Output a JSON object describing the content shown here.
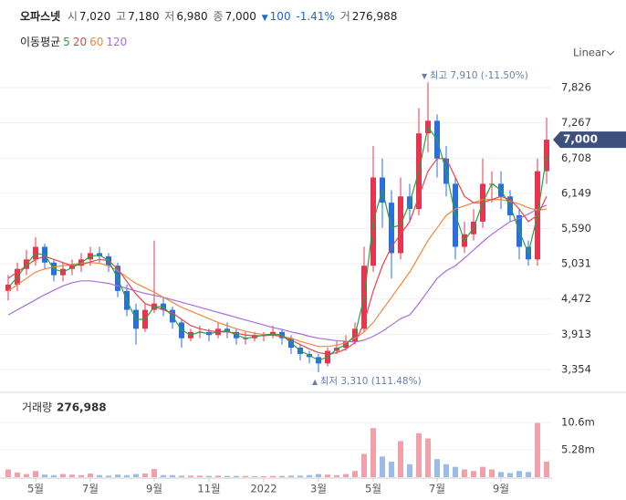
{
  "header": {
    "name": "오파스넷",
    "fields": [
      {
        "label": "시",
        "value": "7,020"
      },
      {
        "label": "고",
        "value": "7,180"
      },
      {
        "label": "저",
        "value": "6,980"
      },
      {
        "label": "종",
        "value": "7,000"
      }
    ],
    "change": "100",
    "change_pct": "-1.41%",
    "volume_label": "거",
    "volume_value": "276,988"
  },
  "chart_data": [
    {
      "type": "candlestick",
      "scale_mode": "Linear",
      "legend_title": "이동평균",
      "up_color": "#e8344e",
      "down_color": "#2a6fdb",
      "ylim": [
        3200,
        8000
      ],
      "yticks": [
        {
          "value": 3354,
          "label": "3,354"
        },
        {
          "value": 3913,
          "label": "3,913"
        },
        {
          "value": 4472,
          "label": "4,472"
        },
        {
          "value": 5031,
          "label": "5,031"
        },
        {
          "value": 5590,
          "label": "5,590"
        },
        {
          "value": 6149,
          "label": "6,149"
        },
        {
          "value": 6708,
          "label": "6,708"
        },
        {
          "value": 7267,
          "label": "7,267"
        },
        {
          "value": 7826,
          "label": "7,826"
        }
      ],
      "grid": true,
      "open": [
        4600,
        4700,
        4950,
        5100,
        5300,
        5050,
        4850,
        4950,
        5000,
        5100,
        5200,
        5150,
        5000,
        4600,
        4300,
        4000,
        4300,
        4400,
        4300,
        4100,
        3850,
        3950,
        3950,
        3900,
        4000,
        3950,
        3850,
        3850,
        3900,
        3900,
        3950,
        3850,
        3700,
        3600,
        3550,
        3450,
        3650,
        3700,
        3800,
        4000,
        5000,
        6400,
        6000,
        5200,
        6100,
        5900,
        7100,
        7300,
        6700,
        6300,
        5300,
        5500,
        5700,
        6300,
        6300,
        6100,
        5800,
        5300,
        5100,
        6500
      ],
      "high": [
        4850,
        5050,
        5250,
        5450,
        5350,
        5100,
        5050,
        5100,
        5200,
        5300,
        5300,
        5200,
        5050,
        4700,
        4400,
        4400,
        5400,
        4500,
        4350,
        4150,
        4000,
        4050,
        4000,
        4100,
        4100,
        4000,
        3950,
        3950,
        3950,
        4050,
        4000,
        3900,
        3750,
        3650,
        3600,
        3700,
        3800,
        3900,
        4100,
        5300,
        6900,
        6700,
        6200,
        6400,
        6300,
        7500,
        7910,
        7400,
        6900,
        6400,
        5700,
        5900,
        6700,
        6500,
        6500,
        6200,
        5900,
        5400,
        6700,
        7350
      ],
      "low": [
        4450,
        4600,
        4850,
        5000,
        4950,
        4750,
        4750,
        4850,
        4900,
        5000,
        5050,
        4900,
        4500,
        4200,
        3750,
        3950,
        4250,
        4200,
        4000,
        3700,
        3800,
        3850,
        3800,
        3850,
        3850,
        3750,
        3750,
        3800,
        3800,
        3850,
        3750,
        3600,
        3500,
        3450,
        3310,
        3400,
        3600,
        3650,
        3750,
        3950,
        4900,
        5600,
        4800,
        5100,
        5700,
        5800,
        6800,
        6400,
        6100,
        5100,
        5200,
        5400,
        5600,
        6000,
        5900,
        5700,
        5100,
        5000,
        5000,
        6300
      ],
      "close": [
        4700,
        4950,
        5100,
        5300,
        5050,
        4850,
        4950,
        5000,
        5100,
        5200,
        5150,
        5000,
        4600,
        4300,
        4000,
        4300,
        4400,
        4300,
        4100,
        3850,
        3950,
        3950,
        3900,
        4000,
        3950,
        3850,
        3850,
        3900,
        3900,
        3950,
        3850,
        3700,
        3600,
        3550,
        3450,
        3650,
        3700,
        3800,
        4000,
        5000,
        6400,
        6000,
        5200,
        6100,
        5900,
        7100,
        7300,
        6700,
        6300,
        5300,
        5500,
        5700,
        6300,
        6300,
        6100,
        5800,
        5300,
        5100,
        6500,
        7000
      ],
      "series": [
        {
          "name": "5",
          "color": "#2e9e46",
          "values": [
            4650,
            4820,
            5020,
            5200,
            5170,
            4950,
            4900,
            4970,
            5050,
            5150,
            5170,
            5080,
            4800,
            4450,
            4150,
            4150,
            4350,
            4350,
            4200,
            3980,
            3900,
            3950,
            3920,
            3950,
            3970,
            3900,
            3850,
            3870,
            3900,
            3920,
            3900,
            3780,
            3650,
            3580,
            3500,
            3550,
            3680,
            3750,
            3900,
            4500,
            5700,
            6200,
            5600,
            5650,
            6000,
            6500,
            7200,
            7000,
            6500,
            5800,
            5400,
            5600,
            6000,
            6300,
            6200,
            5950,
            5550,
            5200,
            5800,
            6750
          ]
        },
        {
          "name": "20",
          "color": "#e0474c",
          "values": [
            4800,
            4900,
            5000,
            5100,
            5150,
            5100,
            5050,
            5000,
            5020,
            5060,
            5100,
            5080,
            4950,
            4750,
            4550,
            4400,
            4350,
            4300,
            4250,
            4150,
            4050,
            4000,
            3970,
            3950,
            3950,
            3930,
            3900,
            3890,
            3890,
            3900,
            3880,
            3820,
            3750,
            3680,
            3620,
            3600,
            3620,
            3680,
            3780,
            4100,
            4600,
            5000,
            5300,
            5500,
            5700,
            6100,
            6500,
            6700,
            6700,
            6400,
            6100,
            6000,
            6000,
            6050,
            6100,
            6050,
            5900,
            5700,
            5800,
            6100
          ]
        },
        {
          "name": "60",
          "color": "#f0883e",
          "values": [
            4600,
            4700,
            4800,
            4900,
            4950,
            4980,
            5000,
            5020,
            5040,
            5050,
            5040,
            5000,
            4920,
            4820,
            4720,
            4650,
            4580,
            4500,
            4420,
            4340,
            4280,
            4220,
            4160,
            4100,
            4050,
            4000,
            3960,
            3930,
            3910,
            3900,
            3880,
            3850,
            3800,
            3760,
            3720,
            3720,
            3740,
            3780,
            3850,
            3950,
            4100,
            4300,
            4500,
            4700,
            4900,
            5150,
            5400,
            5600,
            5800,
            5900,
            5950,
            6000,
            6050,
            6050,
            6050,
            6020,
            5980,
            5920,
            5880,
            5900
          ]
        },
        {
          "name": "120",
          "color": "#a86ee0",
          "values": [
            4220,
            4300,
            4380,
            4460,
            4540,
            4610,
            4680,
            4730,
            4760,
            4760,
            4740,
            4720,
            4680,
            4640,
            4600,
            4560,
            4530,
            4500,
            4460,
            4420,
            4380,
            4340,
            4300,
            4260,
            4220,
            4180,
            4140,
            4100,
            4060,
            4020,
            3990,
            3950,
            3920,
            3880,
            3850,
            3830,
            3810,
            3800,
            3790,
            3820,
            3880,
            3960,
            4060,
            4160,
            4220,
            4400,
            4600,
            4800,
            4920,
            5000,
            5120,
            5250,
            5380,
            5500,
            5600,
            5700,
            5750,
            5820,
            5900,
            5960
          ]
        }
      ],
      "current_price": {
        "value": 7000,
        "label": "7,000"
      },
      "high_mark": {
        "label": "최고",
        "value": 7910,
        "value_label": "7,910",
        "pct": "(-11.50%)"
      },
      "low_mark": {
        "label": "최저",
        "value": 3310,
        "value_label": "3,310",
        "pct": "(111.48%)"
      }
    },
    {
      "type": "bar",
      "title": "거래량",
      "last_value": "276,988",
      "ylim": [
        0,
        12000000
      ],
      "yticks": [
        {
          "value": 5280000,
          "label": "5.28m"
        },
        {
          "value": 10600000,
          "label": "10.6m"
        }
      ],
      "up_color": "#f2a0aa",
      "down_color": "#9dbbe9",
      "categories": [
        null,
        null,
        null,
        "5월",
        null,
        null,
        null,
        null,
        null,
        "7월",
        null,
        null,
        null,
        null,
        null,
        null,
        "9월",
        null,
        null,
        null,
        null,
        null,
        "11월",
        null,
        null,
        null,
        null,
        null,
        "2022",
        null,
        null,
        null,
        null,
        null,
        "3월",
        null,
        null,
        null,
        null,
        null,
        "5월",
        null,
        null,
        null,
        null,
        null,
        null,
        "7월",
        null,
        null,
        null,
        null,
        null,
        null,
        "9월",
        null,
        null,
        null,
        null,
        null
      ],
      "values": [
        1500000,
        900000,
        600000,
        1200000,
        500000,
        400000,
        600000,
        500000,
        400000,
        700000,
        400000,
        300000,
        500000,
        400000,
        600000,
        700000,
        1600000,
        400000,
        400000,
        300000,
        300000,
        300000,
        250000,
        300000,
        250000,
        250000,
        250000,
        200000,
        200000,
        250000,
        250000,
        300000,
        300000,
        400000,
        600000,
        500000,
        400000,
        600000,
        1200000,
        4500000,
        9500000,
        4000000,
        3000000,
        7000000,
        2500000,
        8500000,
        7500000,
        3500000,
        2500000,
        2000000,
        1500000,
        1200000,
        2000000,
        1500000,
        1000000,
        800000,
        1200000,
        1000000,
        10500000,
        3000000
      ]
    }
  ]
}
